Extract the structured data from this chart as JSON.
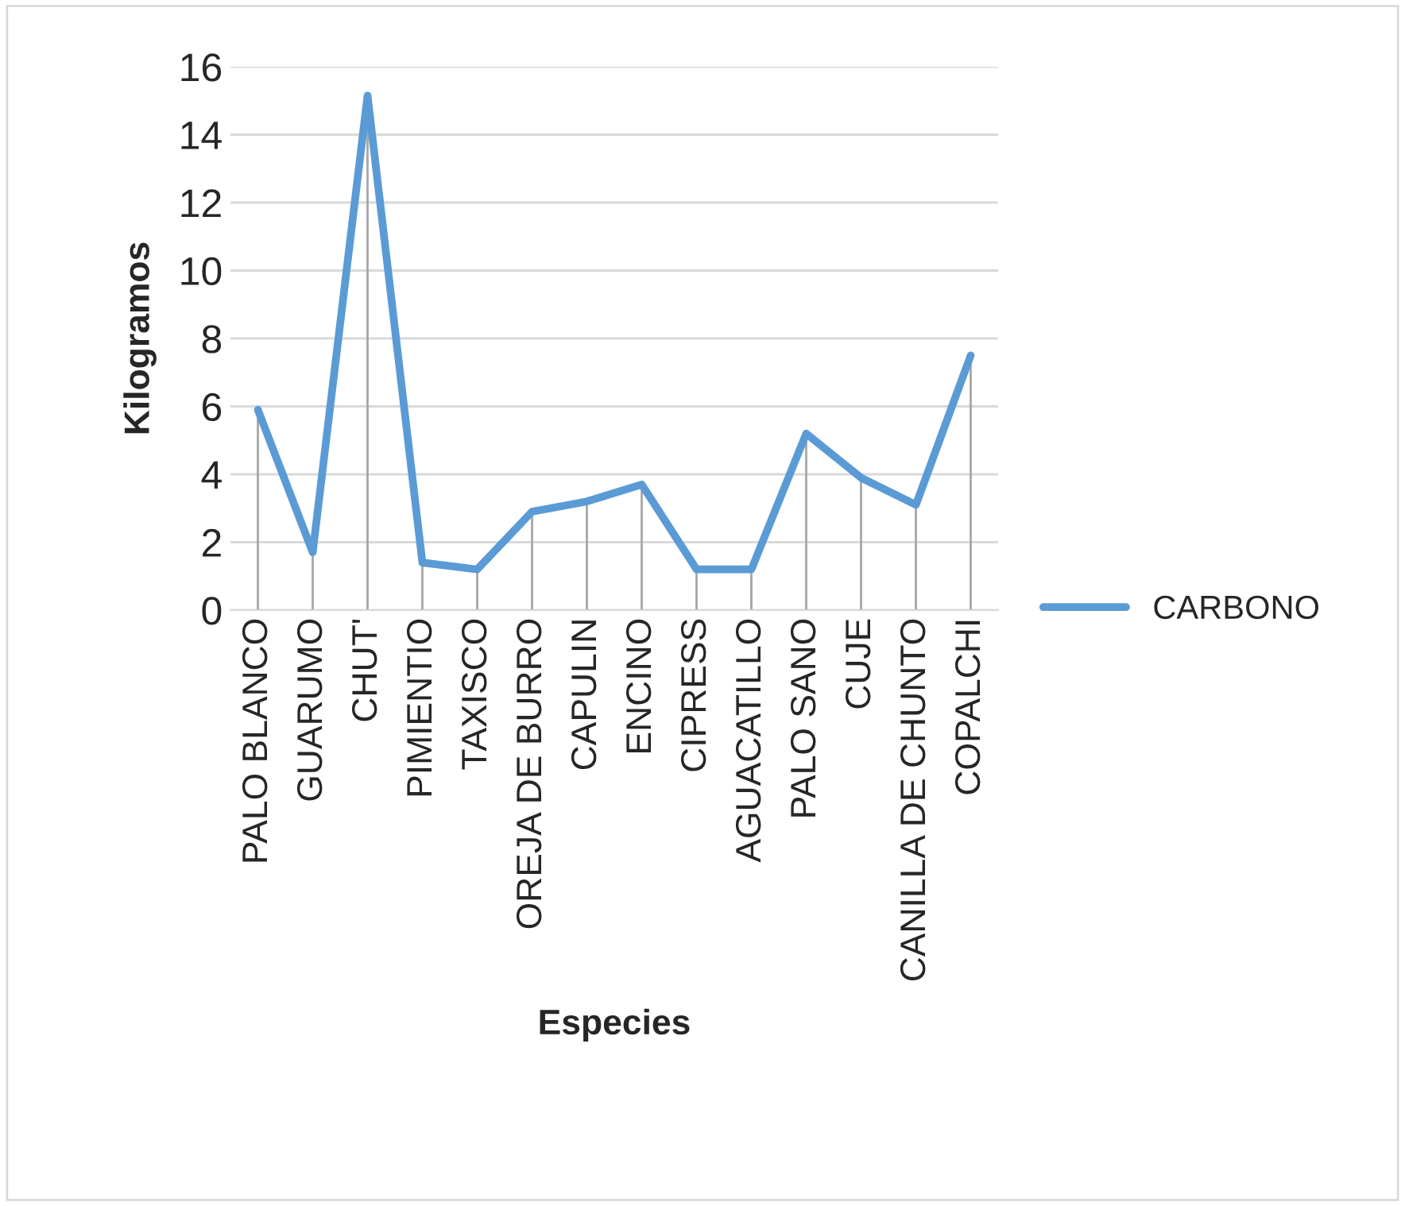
{
  "chart_data": {
    "type": "line",
    "xlabel": "Especies",
    "ylabel": "Kilogramos",
    "categories": [
      "PALO BLANCO",
      "GUARUMO",
      "CHUT'",
      "PIMIENTIO",
      "TAXISCO",
      "OREJA DE BURRO",
      "CAPULIN",
      "ENCINO",
      "CIPRESS",
      "AGUACATILLO",
      "PALO SANO",
      "CUJE",
      "CANILLA DE CHUNTO",
      "COPALCHI"
    ],
    "series": [
      {
        "name": "CARBONO",
        "color": "#5b9bd5",
        "values": [
          5.9,
          1.7,
          15.15,
          1.4,
          1.2,
          2.9,
          3.2,
          3.7,
          1.2,
          1.2,
          5.2,
          3.9,
          3.1,
          7.5
        ],
        "errors": [
          [
            0,
            5.9
          ],
          [
            0,
            1.7
          ],
          [
            0,
            15.15
          ],
          [
            0,
            1.4
          ],
          [
            0,
            1.2
          ],
          [
            0,
            2.9
          ],
          [
            0,
            3.2
          ],
          [
            0,
            3.7
          ],
          [
            0,
            1.2
          ],
          [
            0,
            1.2
          ],
          [
            0,
            5.2
          ],
          [
            0,
            3.9
          ],
          [
            0,
            3.1
          ],
          [
            0,
            7.5
          ]
        ]
      }
    ],
    "ylim": [
      0,
      16
    ],
    "yticks": [
      0,
      2,
      4,
      6,
      8,
      10,
      12,
      14,
      16
    ],
    "grid": "y",
    "legend": "right",
    "marker": "none",
    "line_style": "solid"
  }
}
